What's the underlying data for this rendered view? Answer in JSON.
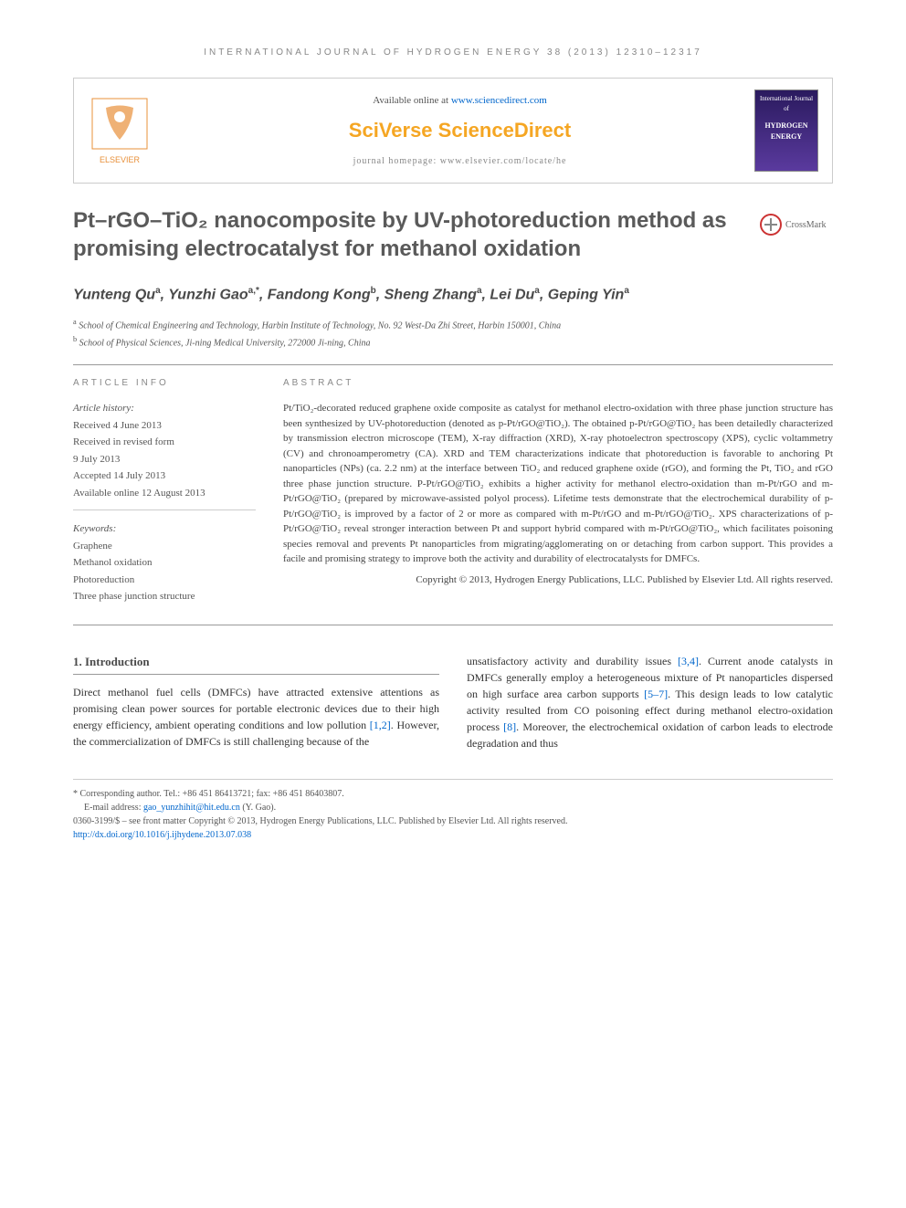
{
  "journal_header": "INTERNATIONAL JOURNAL OF HYDROGEN ENERGY 38 (2013) 12310–12317",
  "top_box": {
    "available_prefix": "Available online at ",
    "available_link": "www.sciencedirect.com",
    "brand": "SciVerse ScienceDirect",
    "homepage": "journal homepage: www.elsevier.com/locate/he",
    "elsevier_label": "ELSEVIER",
    "cover_small": "International Journal of",
    "cover_title": "HYDROGEN ENERGY"
  },
  "title": "Pt–rGO–TiO₂ nanocomposite by UV-photoreduction method as promising electrocatalyst for methanol oxidation",
  "crossmark_label": "CrossMark",
  "authors_html": "Yunteng Qu<sup>a</sup>, Yunzhi Gao<sup>a,*</sup>, Fandong Kong<sup>b</sup>, Sheng Zhang<sup>a</sup>, Lei Du<sup>a</sup>, Geping Yin<sup>a</sup>",
  "affiliations": {
    "a": "School of Chemical Engineering and Technology, Harbin Institute of Technology, No. 92 West-Da Zhi Street, Harbin 150001, China",
    "b": "School of Physical Sciences, Ji-ning Medical University, 272000 Ji-ning, China"
  },
  "info": {
    "header": "ARTICLE INFO",
    "history_label": "Article history:",
    "received": "Received 4 June 2013",
    "revised1": "Received in revised form",
    "revised2": "9 July 2013",
    "accepted": "Accepted 14 July 2013",
    "online": "Available online 12 August 2013",
    "keywords_label": "Keywords:",
    "kw1": "Graphene",
    "kw2": "Methanol oxidation",
    "kw3": "Photoreduction",
    "kw4": "Three phase junction structure"
  },
  "abstract": {
    "header": "ABSTRACT",
    "body": "Pt/TiO₂-decorated reduced graphene oxide composite as catalyst for methanol electro-oxidation with three phase junction structure has been synthesized by UV-photoreduction (denoted as p-Pt/rGO@TiO₂). The obtained p-Pt/rGO@TiO₂ has been detailedly characterized by transmission electron microscope (TEM), X-ray diffraction (XRD), X-ray photoelectron spectroscopy (XPS), cyclic voltammetry (CV) and chronoamperometry (CA). XRD and TEM characterizations indicate that photoreduction is favorable to anchoring Pt nanoparticles (NPs) (ca. 2.2 nm) at the interface between TiO₂ and reduced graphene oxide (rGO), and forming the Pt, TiO₂ and rGO three phase junction structure. P-Pt/rGO@TiO₂ exhibits a higher activity for methanol electro-oxidation than m-Pt/rGO and m-Pt/rGO@TiO₂ (prepared by microwave-assisted polyol process). Lifetime tests demonstrate that the electrochemical durability of p-Pt/rGO@TiO₂ is improved by a factor of 2 or more as compared with m-Pt/rGO and m-Pt/rGO@TiO₂. XPS characterizations of p-Pt/rGO@TiO₂ reveal stronger interaction between Pt and support hybrid compared with m-Pt/rGO@TiO₂, which facilitates poisoning species removal and prevents Pt nanoparticles from migrating/agglomerating on or detaching from carbon support. This provides a facile and promising strategy to improve both the activity and durability of electrocatalysts for DMFCs.",
    "copyright": "Copyright © 2013, Hydrogen Energy Publications, LLC. Published by Elsevier Ltd. All rights reserved."
  },
  "section1": {
    "heading": "1.      Introduction",
    "col1": "Direct methanol fuel cells (DMFCs) have attracted extensive attentions as promising clean power sources for portable electronic devices due to their high energy efficiency, ambient operating conditions and low pollution ",
    "col1_ref": "[1,2]",
    "col1_after": ". However, the commercialization of DMFCs is still challenging because of the",
    "col2_a": "unsatisfactory activity and durability issues ",
    "col2_ref1": "[3,4]",
    "col2_b": ". Current anode catalysts in DMFCs generally employ a heterogeneous mixture of Pt nanoparticles dispersed on high surface area carbon supports ",
    "col2_ref2": "[5–7]",
    "col2_c": ". This design leads to low catalytic activity resulted from CO poisoning effect during methanol electro-oxidation process ",
    "col2_ref3": "[8]",
    "col2_d": ". Moreover, the electrochemical oxidation of carbon leads to electrode degradation and thus"
  },
  "footer": {
    "corresponding": "* Corresponding author. Tel.: +86 451 86413721; fax: +86 451 86403807.",
    "email_label": "E-mail address: ",
    "email": "gao_yunzhihit@hit.edu.cn",
    "email_suffix": " (Y. Gao).",
    "line1": "0360-3199/$ – see front matter Copyright © 2013, Hydrogen Energy Publications, LLC. Published by Elsevier Ltd. All rights reserved.",
    "doi": "http://dx.doi.org/10.1016/j.ijhydene.2013.07.038"
  },
  "colors": {
    "link": "#0066cc",
    "brand": "#f5a623",
    "text": "#333333",
    "muted": "#888888"
  }
}
